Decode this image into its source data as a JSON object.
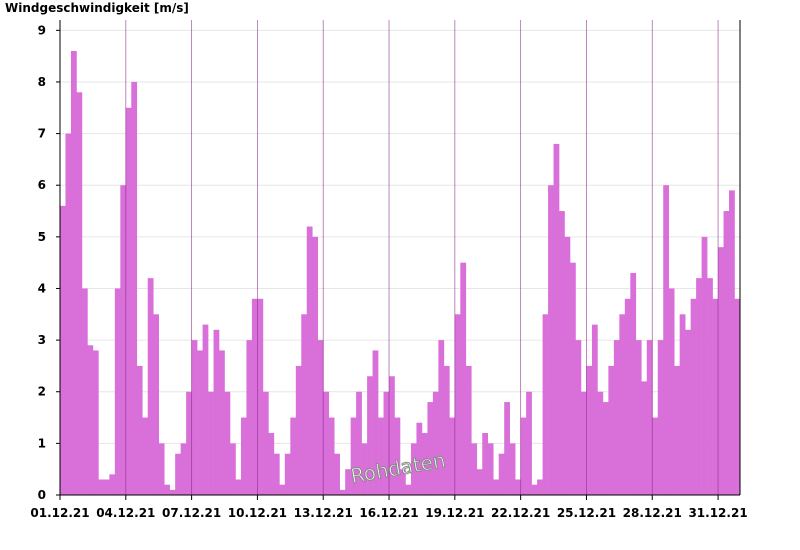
{
  "chart_data": {
    "type": "bar",
    "y_label": "Windgeschwindigkeit [m/s]",
    "annotation": "Rohdaten",
    "color": "#d96fd9",
    "categories": [
      "01.12.21",
      null,
      null,
      null,
      null,
      null,
      null,
      null,
      null,
      null,
      null,
      null,
      "04.12.21",
      null,
      null,
      null,
      null,
      null,
      null,
      null,
      null,
      null,
      null,
      null,
      "07.12.21",
      null,
      null,
      null,
      null,
      null,
      null,
      null,
      null,
      null,
      null,
      null,
      "10.12.21",
      null,
      null,
      null,
      null,
      null,
      null,
      null,
      null,
      null,
      null,
      null,
      "13.12.21",
      null,
      null,
      null,
      null,
      null,
      null,
      null,
      null,
      null,
      null,
      null,
      "16.12.21",
      null,
      null,
      null,
      null,
      null,
      null,
      null,
      null,
      null,
      null,
      null,
      "19.12.21",
      null,
      null,
      null,
      null,
      null,
      null,
      null,
      null,
      null,
      null,
      null,
      "22.12.21",
      null,
      null,
      null,
      null,
      null,
      null,
      null,
      null,
      null,
      null,
      null,
      "25.12.21",
      null,
      null,
      null,
      null,
      null,
      null,
      null,
      null,
      null,
      null,
      null,
      "28.12.21",
      null,
      null,
      null,
      null,
      null,
      null,
      null,
      null,
      null,
      null,
      null,
      "31.12.21",
      null,
      null,
      null
    ],
    "values": [
      5.6,
      7.0,
      8.6,
      7.8,
      4.0,
      2.9,
      2.8,
      0.3,
      0.3,
      0.4,
      4.0,
      6.0,
      7.5,
      8.0,
      2.5,
      1.5,
      4.2,
      3.5,
      1.0,
      0.2,
      0.1,
      0.8,
      1.0,
      2.0,
      3.0,
      2.8,
      3.3,
      2.0,
      3.2,
      2.8,
      2.0,
      1.0,
      0.3,
      1.5,
      3.0,
      3.8,
      3.8,
      2.0,
      1.2,
      0.8,
      0.2,
      0.8,
      1.5,
      2.5,
      3.5,
      5.2,
      5.0,
      3.0,
      2.0,
      1.5,
      0.8,
      0.1,
      0.5,
      1.5,
      2.0,
      1.0,
      2.3,
      2.8,
      1.5,
      2.0,
      2.3,
      1.5,
      0.5,
      0.2,
      1.0,
      1.4,
      1.2,
      1.8,
      2.0,
      3.0,
      2.5,
      1.5,
      3.5,
      4.5,
      2.5,
      1.0,
      0.5,
      1.2,
      1.0,
      0.3,
      0.8,
      1.8,
      1.0,
      0.3,
      1.5,
      2.0,
      0.2,
      0.3,
      3.5,
      6.0,
      6.8,
      5.5,
      5.0,
      4.5,
      3.0,
      2.0,
      2.5,
      3.3,
      2.0,
      1.8,
      2.5,
      3.0,
      3.5,
      3.8,
      4.3,
      3.0,
      2.2,
      3.0,
      1.5,
      3.0,
      6.0,
      4.0,
      2.5,
      3.5,
      3.2,
      3.8,
      4.2,
      5.0,
      4.2,
      3.8,
      4.8,
      5.5,
      5.9,
      3.8
    ],
    "ylim": [
      0,
      9.2
    ],
    "yticks": [
      0,
      1,
      2,
      3,
      4,
      5,
      6,
      7,
      8,
      9
    ],
    "grid": true
  }
}
